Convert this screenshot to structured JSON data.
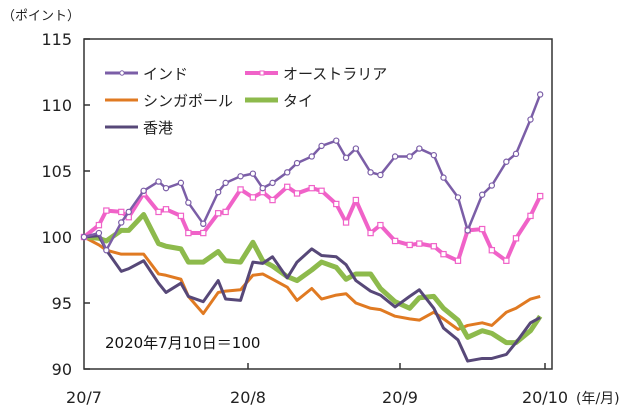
{
  "chart_data": {
    "type": "line",
    "title": "",
    "ylabel": "（ポイント）",
    "xlabel": "(年/月)",
    "ylim": [
      90,
      115
    ],
    "yticks": [
      "90",
      "95",
      "100",
      "105",
      "110",
      "115"
    ],
    "xticks": [
      {
        "label": "20/7",
        "date": "2020-07-10"
      },
      {
        "label": "20/8",
        "date": "2020-08-01"
      },
      {
        "label": "20/9",
        "date": "2020-09-01"
      },
      {
        "label": "20/10",
        "date": "2020-10-01"
      }
    ],
    "grid": false,
    "legend_position": "top-left",
    "annotation": "2020年7月10日＝100",
    "x": [
      "2020-07-10",
      "2020-07-12",
      "2020-07-13",
      "2020-07-15",
      "2020-07-16",
      "2020-07-18",
      "2020-07-20",
      "2020-07-21",
      "2020-07-23",
      "2020-07-24",
      "2020-07-26",
      "2020-07-28",
      "2020-07-29",
      "2020-07-31",
      "2020-08-02",
      "2020-08-04",
      "2020-08-06",
      "2020-08-09",
      "2020-08-11",
      "2020-08-14",
      "2020-08-16",
      "2020-08-19",
      "2020-08-21",
      "2020-08-23",
      "2020-08-26",
      "2020-08-28",
      "2020-08-31",
      "2020-09-03",
      "2020-09-05",
      "2020-09-08",
      "2020-09-10",
      "2020-09-13",
      "2020-09-15",
      "2020-09-18",
      "2020-09-20",
      "2020-09-23",
      "2020-09-25",
      "2020-09-28",
      "2020-09-30"
    ],
    "series": [
      {
        "name": "インド",
        "color": "#7b5ea7",
        "marker": "circle",
        "values": [
          100.0,
          100.3,
          99.0,
          101.1,
          101.9,
          103.5,
          104.2,
          103.7,
          104.1,
          102.6,
          101.0,
          103.4,
          104.1,
          104.6,
          104.8,
          103.7,
          104.1,
          104.9,
          105.6,
          106.1,
          106.9,
          107.3,
          106.0,
          106.7,
          104.9,
          104.7,
          106.1,
          106.1,
          106.7,
          106.2,
          104.5,
          103.0,
          100.5,
          103.2,
          103.9,
          105.7,
          106.3,
          108.9,
          110.8
        ]
      },
      {
        "name": "オーストラリア",
        "color": "#f062c8",
        "marker": "square",
        "values": [
          100.0,
          100.9,
          102.0,
          101.9,
          101.5,
          103.3,
          101.9,
          102.1,
          101.6,
          100.3,
          100.3,
          101.8,
          101.9,
          103.6,
          103.0,
          103.4,
          102.8,
          103.8,
          103.3,
          103.7,
          103.5,
          102.5,
          101.1,
          102.8,
          100.3,
          100.9,
          99.7,
          99.4,
          99.5,
          99.3,
          98.7,
          98.2,
          100.5,
          100.6,
          99.0,
          98.2,
          99.9,
          101.6,
          103.1
        ]
      },
      {
        "name": "シンガポール",
        "color": "#e07a22",
        "marker": "none",
        "values": [
          100.0,
          99.4,
          99.0,
          98.7,
          98.7,
          98.7,
          97.2,
          97.1,
          96.8,
          95.5,
          94.2,
          95.8,
          95.9,
          96.0,
          97.1,
          97.2,
          96.8,
          96.2,
          95.2,
          96.1,
          95.3,
          95.6,
          95.7,
          95.0,
          94.6,
          94.5,
          94.0,
          93.8,
          93.7,
          94.3,
          93.8,
          93.0,
          93.3,
          93.5,
          93.3,
          94.3,
          94.6,
          95.3,
          95.5
        ]
      },
      {
        "name": "タイ",
        "color": "#8dba4c",
        "marker": "none",
        "values": [
          100.0,
          99.9,
          99.7,
          100.5,
          100.5,
          101.7,
          99.5,
          99.3,
          99.1,
          98.1,
          98.1,
          98.9,
          98.2,
          98.1,
          99.6,
          98.2,
          97.8,
          97.0,
          96.7,
          97.5,
          98.1,
          97.7,
          96.8,
          97.2,
          97.2,
          96.1,
          95.1,
          94.6,
          95.4,
          95.5,
          94.6,
          93.7,
          92.4,
          92.9,
          92.7,
          92.0,
          92.0,
          92.9,
          94.0
        ]
      },
      {
        "name": "香港",
        "color": "#574878",
        "marker": "none",
        "values": [
          100.0,
          100.1,
          99.0,
          97.4,
          97.6,
          98.2,
          96.5,
          95.8,
          96.5,
          95.5,
          95.1,
          96.7,
          95.3,
          95.2,
          98.1,
          98.0,
          98.5,
          96.9,
          98.1,
          99.1,
          98.6,
          98.5,
          97.9,
          96.7,
          95.9,
          95.6,
          94.7,
          95.5,
          96.0,
          94.6,
          93.1,
          92.2,
          90.6,
          90.8,
          90.8,
          91.1,
          92.0,
          93.5,
          93.9
        ]
      }
    ]
  }
}
